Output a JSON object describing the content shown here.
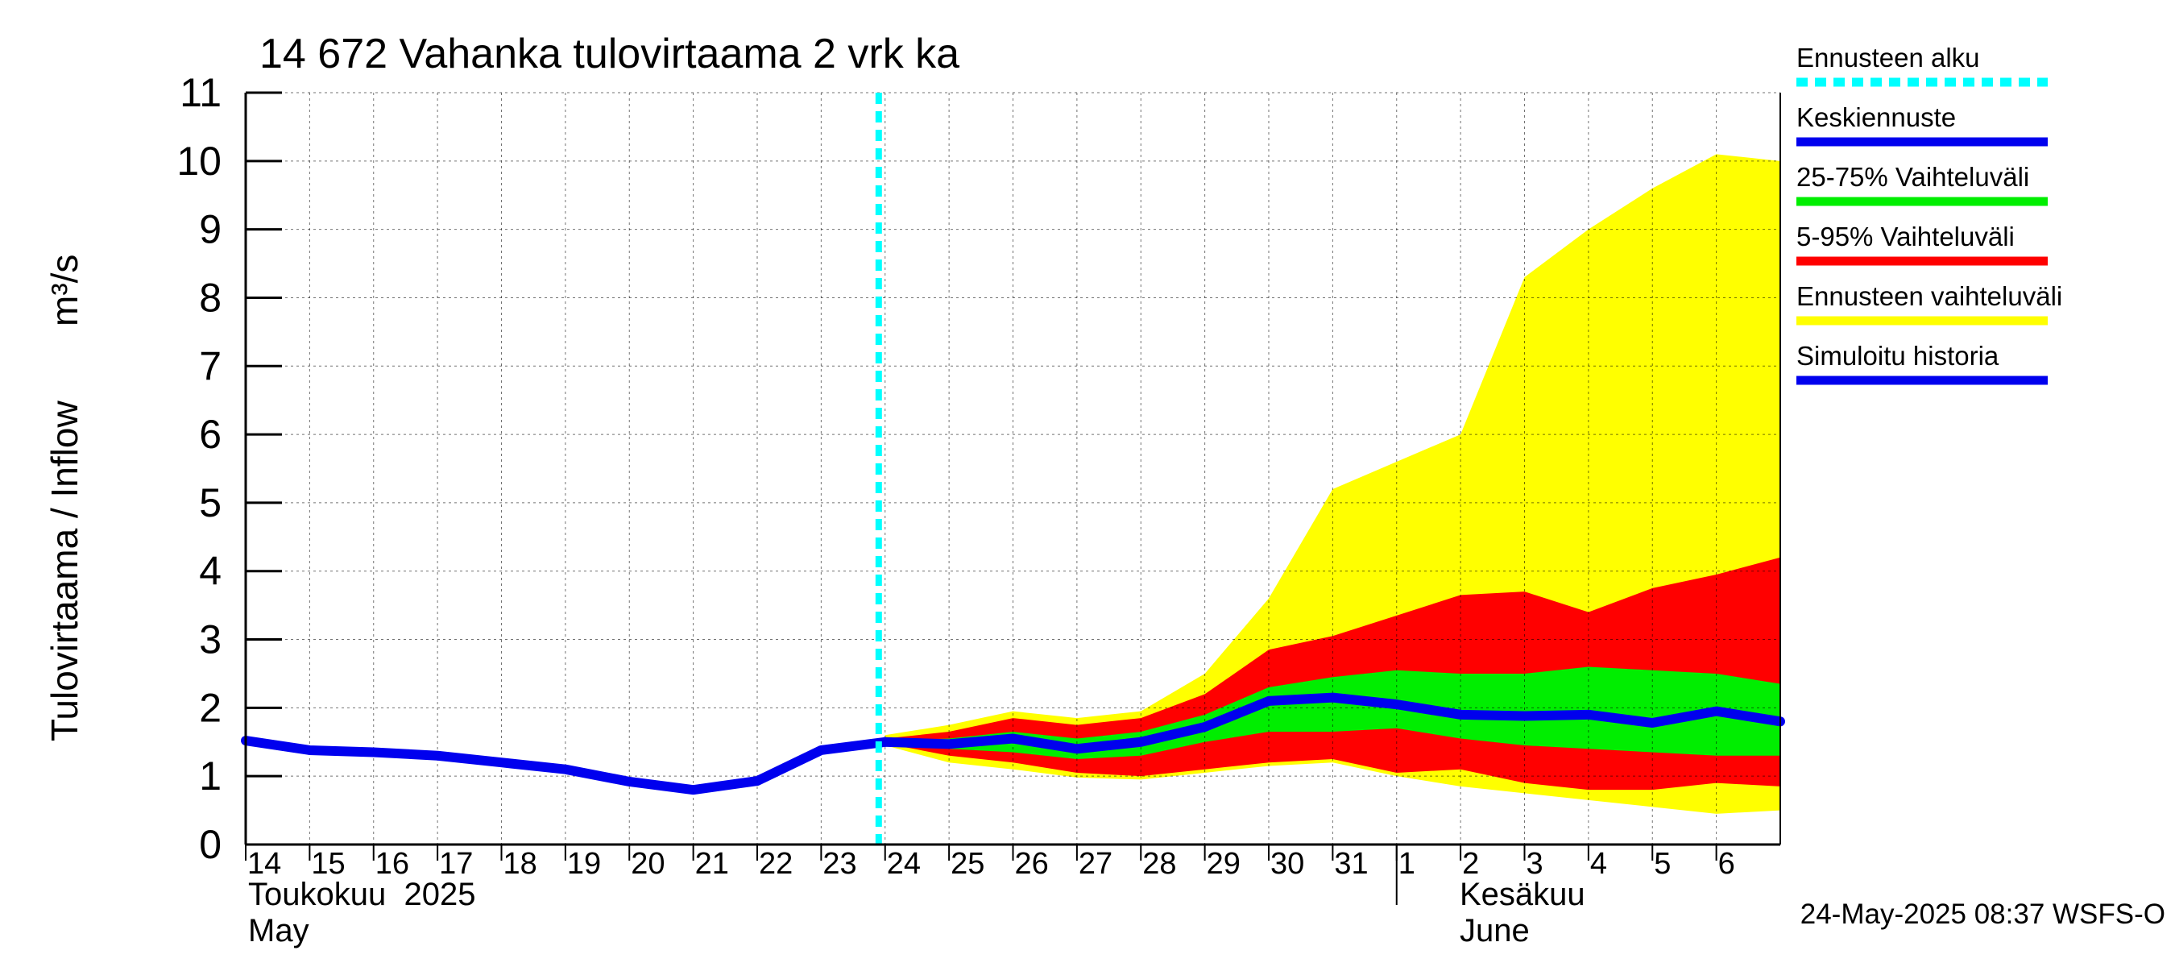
{
  "chart_data": {
    "type": "area",
    "title": "14 672 Vahanka tulovirtaama 2 vrk ka",
    "ylabel": "Tulovirtaama / Inflow",
    "yunit": "m³/s",
    "ylim": [
      0,
      11
    ],
    "yticks": [
      "0",
      "1",
      "2",
      "3",
      "4",
      "5",
      "6",
      "7",
      "8",
      "9",
      "10",
      "11"
    ],
    "x_start_day": 14,
    "x_end_day": 38,
    "forecast_start_day": 23.9,
    "month_divider_day": 32,
    "xtick_labels": [
      {
        "day": 14,
        "label": "14"
      },
      {
        "day": 15,
        "label": "15"
      },
      {
        "day": 16,
        "label": "16"
      },
      {
        "day": 17,
        "label": "17"
      },
      {
        "day": 18,
        "label": "18"
      },
      {
        "day": 19,
        "label": "19"
      },
      {
        "day": 20,
        "label": "20"
      },
      {
        "day": 21,
        "label": "21"
      },
      {
        "day": 22,
        "label": "22"
      },
      {
        "day": 23,
        "label": "23"
      },
      {
        "day": 24,
        "label": "24"
      },
      {
        "day": 25,
        "label": "25"
      },
      {
        "day": 26,
        "label": "26"
      },
      {
        "day": 27,
        "label": "27"
      },
      {
        "day": 28,
        "label": "28"
      },
      {
        "day": 29,
        "label": "29"
      },
      {
        "day": 30,
        "label": "30"
      },
      {
        "day": 31,
        "label": "31"
      },
      {
        "day": 32,
        "label": "1"
      },
      {
        "day": 33,
        "label": "2"
      },
      {
        "day": 34,
        "label": "3"
      },
      {
        "day": 35,
        "label": "4"
      },
      {
        "day": 36,
        "label": "5"
      },
      {
        "day": 37,
        "label": "6"
      }
    ],
    "month_labels": {
      "may_fi": "Toukokuu  2025",
      "may_en": "May",
      "june_fi": "Kesäkuu",
      "june_en": "June"
    },
    "forecast_x": [
      24,
      25,
      26,
      27,
      28,
      29,
      30,
      31,
      32,
      33,
      34,
      35,
      36,
      37,
      38
    ],
    "series": [
      {
        "name": "Ennusteen vaihteluväli",
        "color": "#ffff00",
        "upper": [
          1.6,
          1.75,
          1.95,
          1.85,
          1.95,
          2.5,
          3.6,
          5.2,
          5.6,
          6.0,
          8.3,
          9.0,
          9.6,
          10.1,
          10.0
        ],
        "lower": [
          1.45,
          1.2,
          1.1,
          0.98,
          0.95,
          1.05,
          1.15,
          1.2,
          1.0,
          0.85,
          0.75,
          0.65,
          0.55,
          0.45,
          0.5
        ]
      },
      {
        "name": "5-95% Vaihteluväli",
        "color": "#ff0000",
        "upper": [
          1.55,
          1.65,
          1.85,
          1.75,
          1.85,
          2.2,
          2.85,
          3.05,
          3.35,
          3.65,
          3.7,
          3.4,
          3.75,
          3.95,
          4.2
        ],
        "lower": [
          1.48,
          1.3,
          1.2,
          1.05,
          1.0,
          1.1,
          1.2,
          1.25,
          1.05,
          1.1,
          0.9,
          0.8,
          0.8,
          0.9,
          0.85
        ]
      },
      {
        "name": "25-75% Vaihteluväli",
        "color": "#00ee00",
        "upper": [
          1.52,
          1.55,
          1.65,
          1.55,
          1.65,
          1.9,
          2.3,
          2.45,
          2.55,
          2.5,
          2.5,
          2.6,
          2.55,
          2.5,
          2.35
        ],
        "lower": [
          1.48,
          1.4,
          1.35,
          1.25,
          1.3,
          1.5,
          1.65,
          1.65,
          1.7,
          1.55,
          1.45,
          1.4,
          1.35,
          1.3,
          1.3
        ]
      }
    ],
    "keskiennuste": {
      "name": "Keskiennuste",
      "color": "#0000ee",
      "x": [
        24,
        25,
        26,
        27,
        28,
        29,
        30,
        31,
        32,
        33,
        34,
        35,
        36,
        37,
        38
      ],
      "y": [
        1.5,
        1.47,
        1.55,
        1.4,
        1.5,
        1.72,
        2.1,
        2.15,
        2.05,
        1.9,
        1.88,
        1.9,
        1.78,
        1.95,
        1.8
      ]
    },
    "history": {
      "name": "Simuloitu historia",
      "color": "#0000ee",
      "x": [
        14,
        15,
        16,
        17,
        18,
        19,
        20,
        21,
        22,
        23,
        24
      ],
      "y": [
        1.52,
        1.38,
        1.35,
        1.3,
        1.2,
        1.1,
        0.92,
        0.8,
        0.93,
        1.38,
        1.5
      ]
    },
    "legend": {
      "position": "right",
      "items": [
        {
          "label": "Ennusteen alku",
          "color": "#00ffff",
          "style": "dashed"
        },
        {
          "label": "Keskiennuste",
          "color": "#0000ee",
          "style": "solid"
        },
        {
          "label": "25-75% Vaihteluväli",
          "color": "#00ee00",
          "style": "solid"
        },
        {
          "label": "5-95% Vaihteluväli",
          "color": "#ff0000",
          "style": "solid"
        },
        {
          "label": "Ennusteen vaihteluväli",
          "color": "#ffff00",
          "style": "solid"
        },
        {
          "label": "Simuloitu historia",
          "color": "#0000ee",
          "style": "solid"
        }
      ]
    },
    "footer": "24-May-2025 08:37 WSFS-O",
    "grid": true
  }
}
